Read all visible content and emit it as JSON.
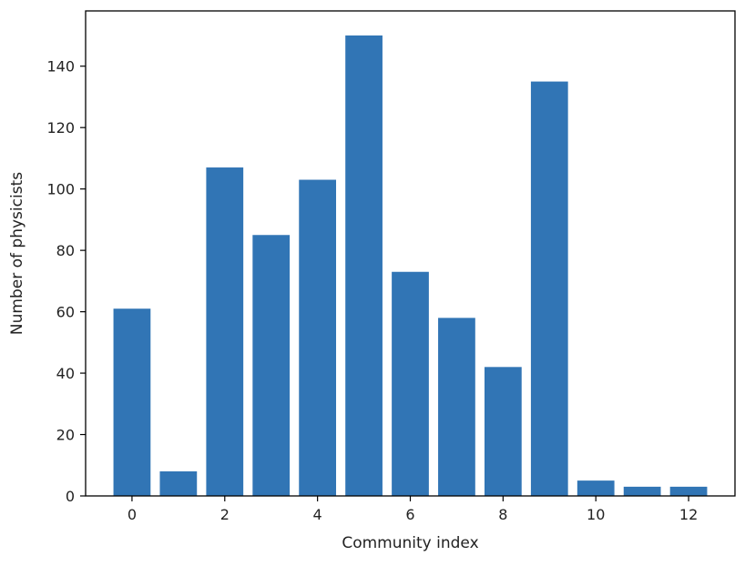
{
  "chart_data": {
    "type": "bar",
    "title": "",
    "xlabel": "Community index",
    "ylabel": "Number of physicists",
    "categories": [
      0,
      1,
      2,
      3,
      4,
      5,
      6,
      7,
      8,
      9,
      10,
      11,
      12
    ],
    "values": [
      61,
      8,
      107,
      85,
      103,
      150,
      73,
      58,
      42,
      135,
      5,
      3,
      3
    ],
    "xlim": [
      -1,
      13
    ],
    "ylim": [
      0,
      158
    ],
    "xticks": [
      0,
      2,
      4,
      6,
      8,
      10,
      12
    ],
    "yticks": [
      0,
      20,
      40,
      60,
      80,
      100,
      120,
      140
    ],
    "grid": false,
    "bar_color": "#3175b5",
    "axis_color": "#000000"
  }
}
